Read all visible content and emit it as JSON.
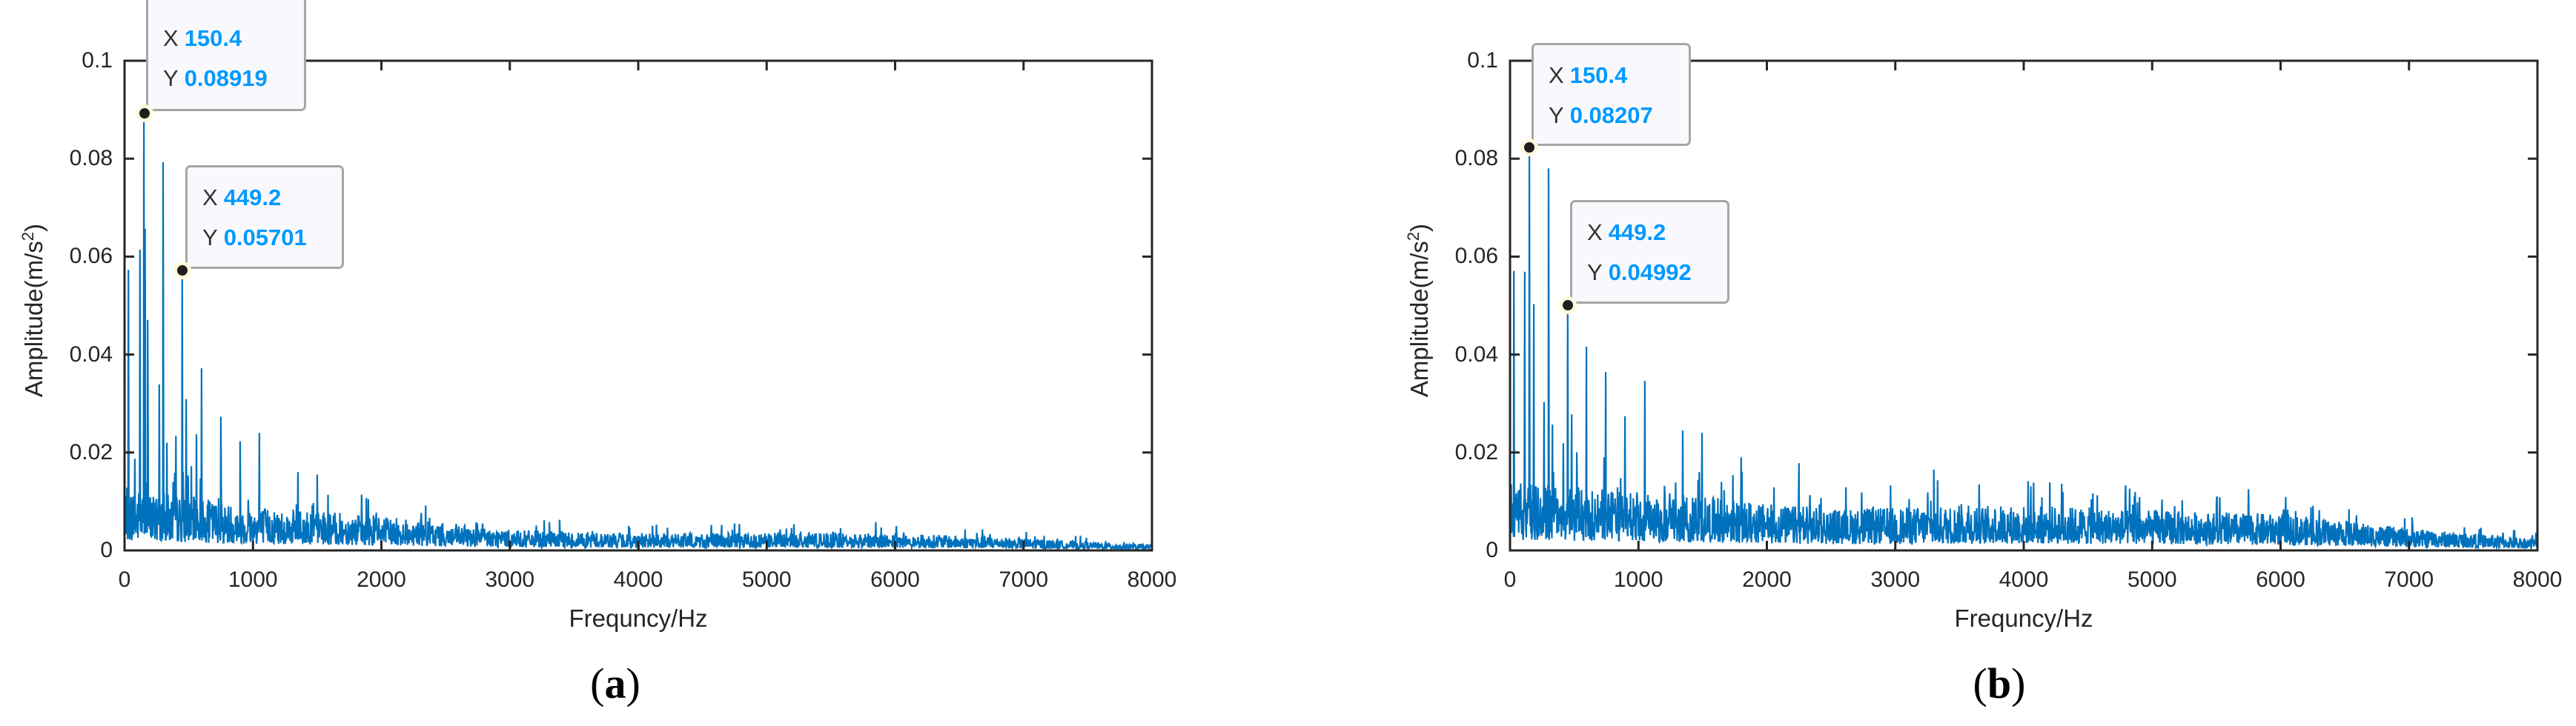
{
  "figure": {
    "panels": [
      {
        "id": "a",
        "caption": "a",
        "xlabel": "Frequncy/Hz",
        "ylabel_main": "Amplitude(m/s",
        "ylabel_sup": "2",
        "ylabel_close": ")",
        "xticks": [
          "0",
          "1000",
          "2000",
          "3000",
          "4000",
          "5000",
          "6000",
          "7000",
          "8000"
        ],
        "yticks": [
          "0",
          "0.02",
          "0.04",
          "0.06",
          "0.08",
          "0.1"
        ],
        "datatips": [
          {
            "x_key": "X",
            "x_val": "150.4",
            "y_key": "Y",
            "y_val": "0.08919"
          },
          {
            "x_key": "X",
            "x_val": "449.2",
            "y_key": "Y",
            "y_val": "0.05701"
          }
        ]
      },
      {
        "id": "b",
        "caption": "b",
        "xlabel": "Frequncy/Hz",
        "ylabel_main": "Amplitude(m/s",
        "ylabel_sup": "2",
        "ylabel_close": ")",
        "xticks": [
          "0",
          "1000",
          "2000",
          "3000",
          "4000",
          "5000",
          "6000",
          "7000",
          "8000"
        ],
        "yticks": [
          "0",
          "0.02",
          "0.04",
          "0.06",
          "0.08",
          "0.1"
        ],
        "datatips": [
          {
            "x_key": "X",
            "x_val": "150.4",
            "y_key": "Y",
            "y_val": "0.08207"
          },
          {
            "x_key": "X",
            "x_val": "449.2",
            "y_key": "Y",
            "y_val": "0.04992"
          }
        ]
      }
    ]
  },
  "colors": {
    "line": "#0072bd",
    "axis": "#262626",
    "datatip_value": "#0099ff",
    "datatip_border": "#a6a6a6",
    "datatip_bg": "#f9f9fd"
  },
  "chart_data": [
    {
      "type": "line",
      "title": "(a)",
      "xlabel": "Frequncy/Hz",
      "ylabel": "Amplitude(m/s^2)",
      "xlim": [
        0,
        8000
      ],
      "ylim": [
        0,
        0.1
      ],
      "xticks": [
        0,
        1000,
        2000,
        3000,
        4000,
        5000,
        6000,
        7000,
        8000
      ],
      "yticks": [
        0,
        0.02,
        0.04,
        0.06,
        0.08,
        0.1
      ],
      "grid": false,
      "annotations": [
        {
          "x": 150.4,
          "y": 0.08919,
          "label": "X 150.4 / Y 0.08919"
        },
        {
          "x": 449.2,
          "y": 0.05701,
          "label": "X 449.2 / Y 0.05701"
        }
      ],
      "peaks": [
        {
          "x": 30,
          "y": 0.0573
        },
        {
          "x": 80,
          "y": 0.0187
        },
        {
          "x": 120,
          "y": 0.0614
        },
        {
          "x": 150.4,
          "y": 0.08919
        },
        {
          "x": 160,
          "y": 0.0657
        },
        {
          "x": 180,
          "y": 0.0471
        },
        {
          "x": 270,
          "y": 0.0339
        },
        {
          "x": 300,
          "y": 0.0793
        },
        {
          "x": 330,
          "y": 0.022
        },
        {
          "x": 400,
          "y": 0.0234
        },
        {
          "x": 449.2,
          "y": 0.05701
        },
        {
          "x": 480,
          "y": 0.0309
        },
        {
          "x": 560,
          "y": 0.0237
        },
        {
          "x": 600,
          "y": 0.0372
        },
        {
          "x": 750,
          "y": 0.0273
        },
        {
          "x": 900,
          "y": 0.0223
        },
        {
          "x": 1050,
          "y": 0.024
        },
        {
          "x": 1350,
          "y": 0.016
        },
        {
          "x": 1500,
          "y": 0.0155
        },
        {
          "x": 4750,
          "y": 0.0055
        },
        {
          "x": 5850,
          "y": 0.0058
        }
      ],
      "noise_envelope": {
        "x": [
          0,
          500,
          1000,
          1500,
          2000,
          2500,
          3000,
          4000,
          5000,
          6000,
          7000,
          7500,
          8000
        ],
        "y": [
          0.013,
          0.011,
          0.009,
          0.008,
          0.007,
          0.0055,
          0.0042,
          0.0035,
          0.0036,
          0.0035,
          0.0025,
          0.0018,
          0.0012
        ]
      }
    },
    {
      "type": "line",
      "title": "(b)",
      "xlabel": "Frequncy/Hz",
      "ylabel": "Amplitude(m/s^2)",
      "xlim": [
        0,
        8000
      ],
      "ylim": [
        0,
        0.1
      ],
      "xticks": [
        0,
        1000,
        2000,
        3000,
        4000,
        5000,
        6000,
        7000,
        8000
      ],
      "yticks": [
        0,
        0.02,
        0.04,
        0.06,
        0.08,
        0.1
      ],
      "grid": false,
      "annotations": [
        {
          "x": 150.4,
          "y": 0.08207,
          "label": "X 150.4 / Y 0.08207"
        },
        {
          "x": 449.2,
          "y": 0.04992,
          "label": "X 449.2 / Y 0.04992"
        }
      ],
      "peaks": [
        {
          "x": 30,
          "y": 0.0571
        },
        {
          "x": 115,
          "y": 0.0569
        },
        {
          "x": 150.4,
          "y": 0.08207
        },
        {
          "x": 185,
          "y": 0.0503
        },
        {
          "x": 265,
          "y": 0.0303
        },
        {
          "x": 300,
          "y": 0.078
        },
        {
          "x": 330,
          "y": 0.0257
        },
        {
          "x": 415,
          "y": 0.0219
        },
        {
          "x": 449.2,
          "y": 0.04992
        },
        {
          "x": 480,
          "y": 0.0278
        },
        {
          "x": 595,
          "y": 0.0416
        },
        {
          "x": 745,
          "y": 0.0364
        },
        {
          "x": 895,
          "y": 0.0274
        },
        {
          "x": 1050,
          "y": 0.0346
        },
        {
          "x": 1345,
          "y": 0.0245
        },
        {
          "x": 1495,
          "y": 0.024
        },
        {
          "x": 1800,
          "y": 0.019
        },
        {
          "x": 2250,
          "y": 0.0178
        },
        {
          "x": 3300,
          "y": 0.0165
        },
        {
          "x": 5750,
          "y": 0.0125
        }
      ],
      "noise_envelope": {
        "x": [
          0,
          500,
          1000,
          1500,
          2000,
          2500,
          3000,
          3500,
          4000,
          4500,
          5000,
          5500,
          6000,
          6500,
          7000,
          7500,
          8000
        ],
        "y": [
          0.014,
          0.013,
          0.012,
          0.011,
          0.0095,
          0.0085,
          0.0088,
          0.0092,
          0.0092,
          0.0088,
          0.0082,
          0.0078,
          0.0075,
          0.006,
          0.0045,
          0.0035,
          0.0025
        ]
      }
    }
  ]
}
